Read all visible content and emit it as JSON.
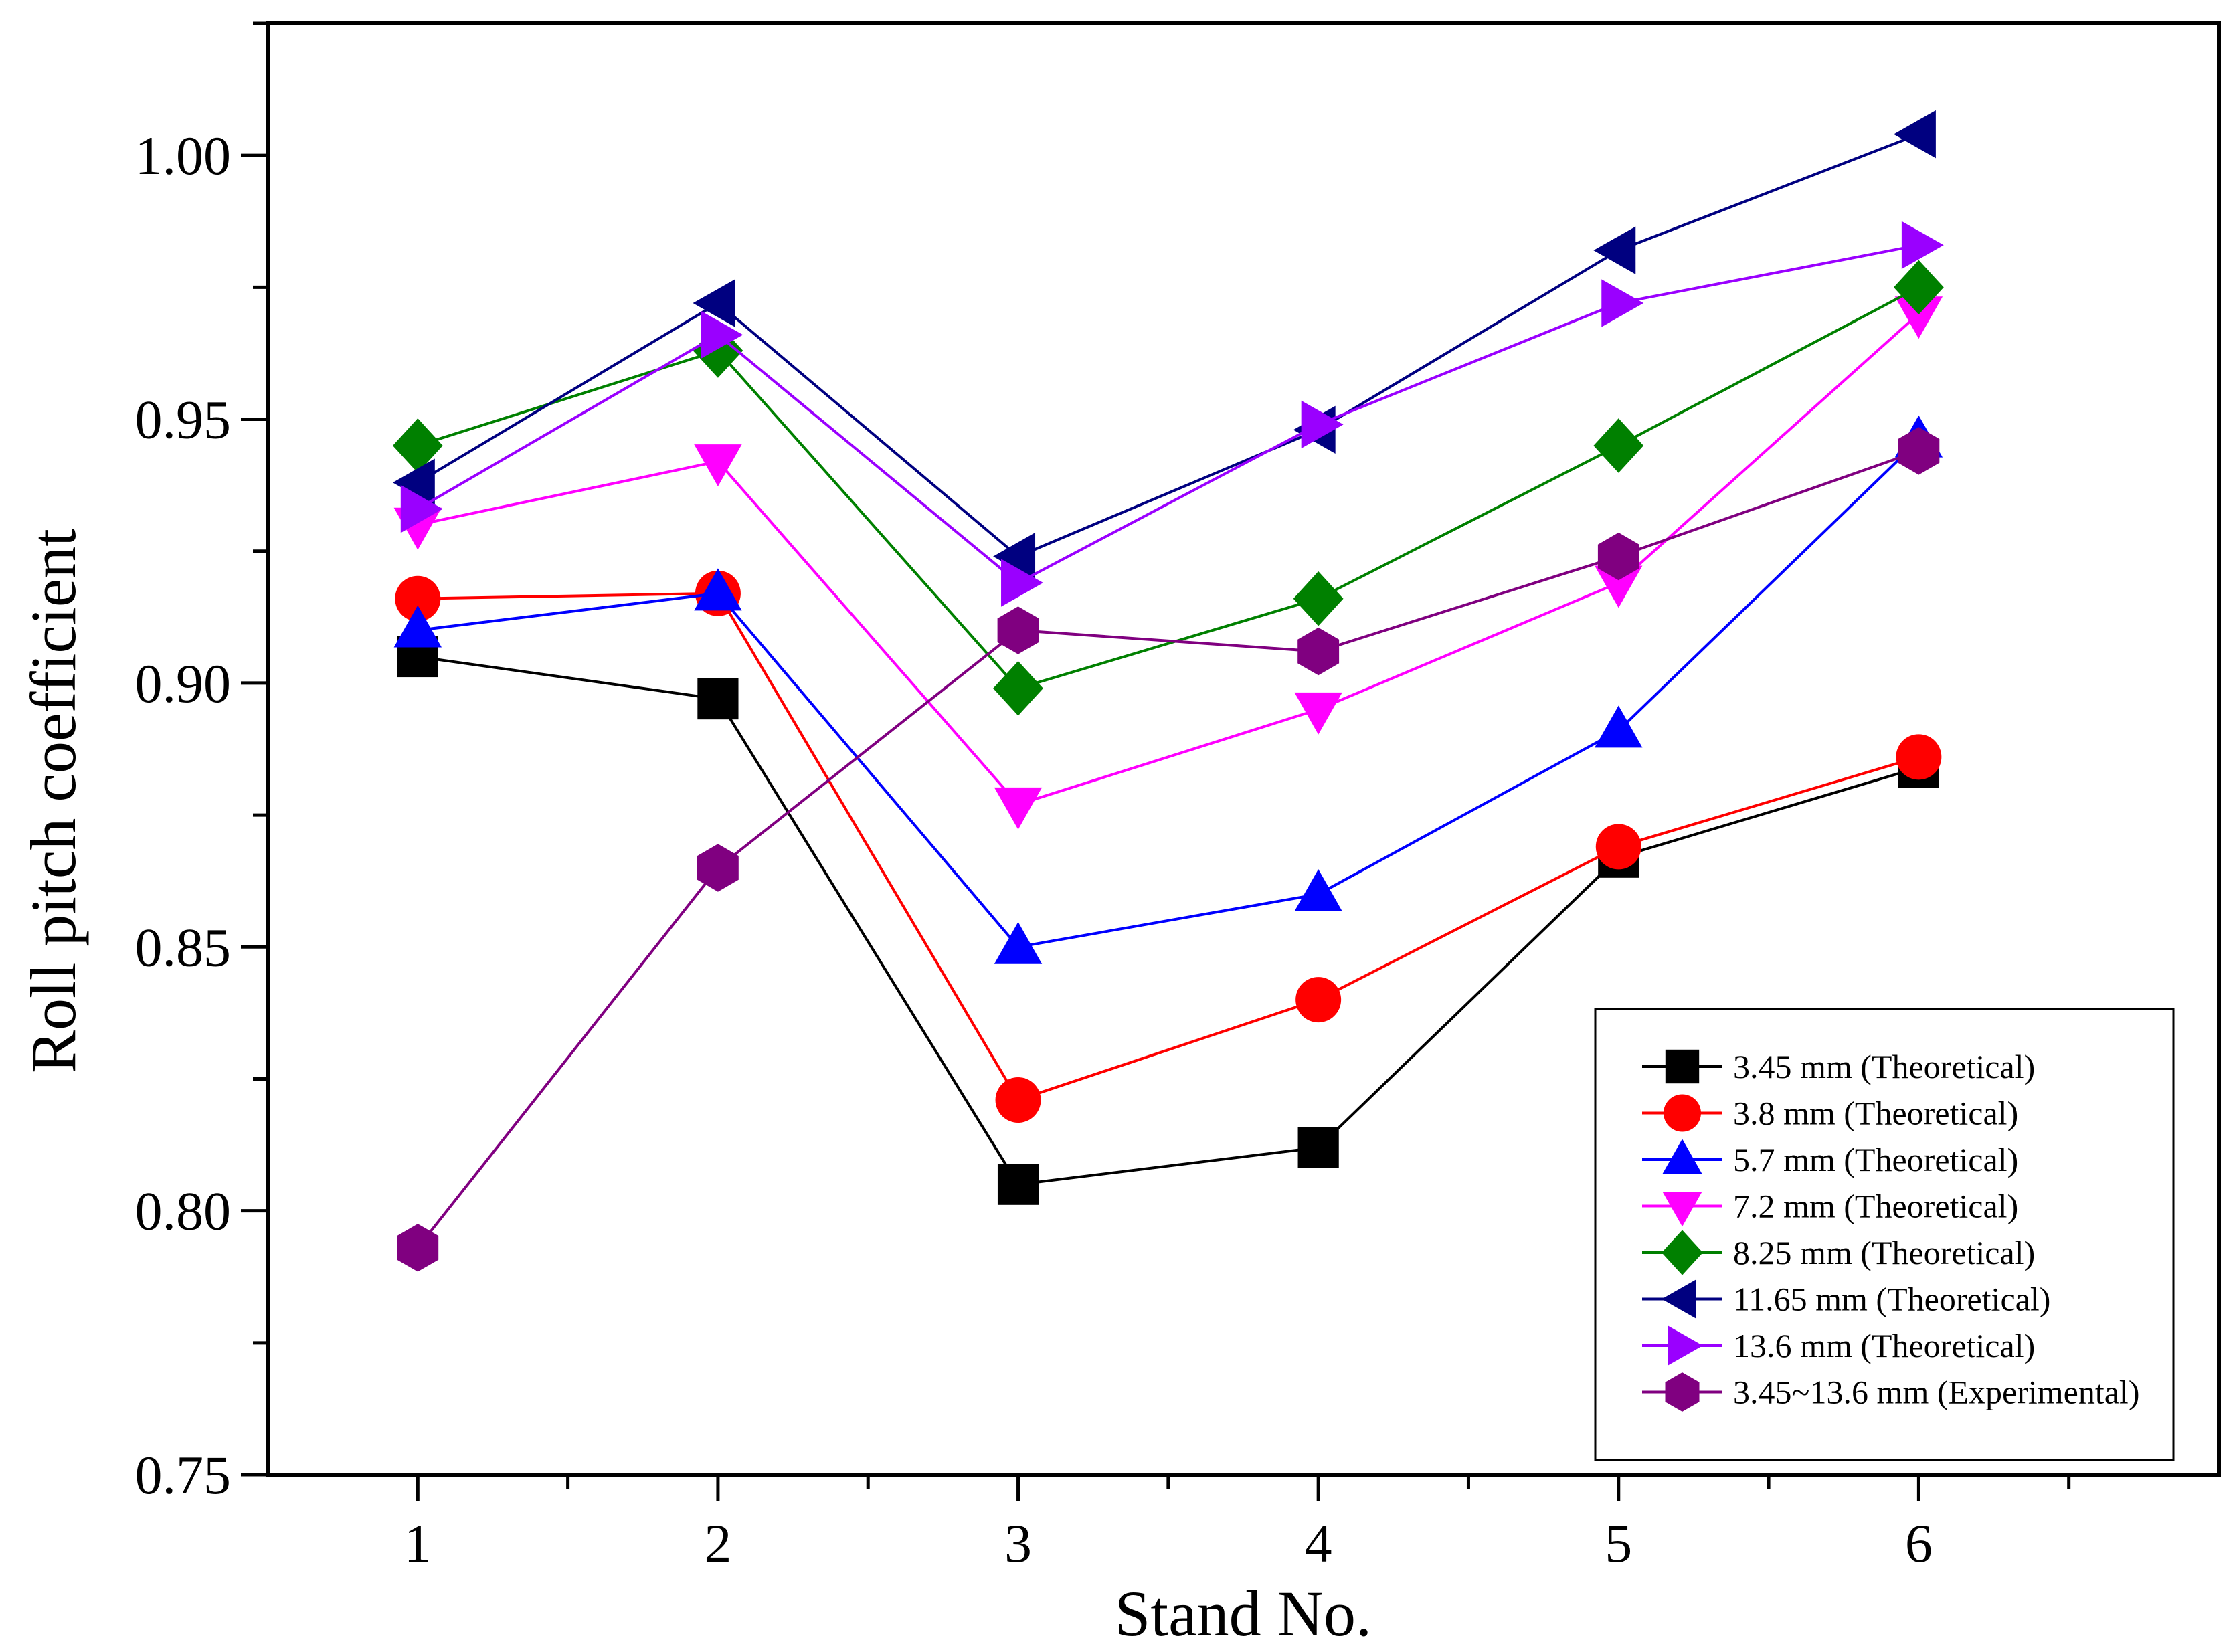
{
  "chart_data": {
    "type": "line",
    "title": "",
    "xlabel": "Stand No.",
    "ylabel": "Roll pitch coefficient",
    "x": [
      1,
      2,
      3,
      4,
      5,
      6
    ],
    "x_tick_labels": [
      "1",
      "2",
      "3",
      "4",
      "5",
      "6"
    ],
    "xlim": [
      0.5,
      7.0
    ],
    "ylim": [
      0.75,
      1.025
    ],
    "y_ticks": [
      0.75,
      0.8,
      0.85,
      0.9,
      0.95,
      1.0
    ],
    "y_tick_labels": [
      "0.75",
      "0.80",
      "0.85",
      "0.90",
      "0.95",
      "1.00"
    ],
    "grid": false,
    "legend_position": "bottom-right",
    "series": [
      {
        "name": "3.45 mm (Theoretical)",
        "color": "#000000",
        "marker": "square",
        "values": [
          0.905,
          0.897,
          0.805,
          0.812,
          0.867,
          0.884
        ]
      },
      {
        "name": "3.8 mm (Theoretical)",
        "color": "#ff0000",
        "marker": "circle",
        "values": [
          0.916,
          0.917,
          0.821,
          0.84,
          0.869,
          0.886
        ]
      },
      {
        "name": "5.7 mm (Theoretical)",
        "color": "#0000ff",
        "marker": "triangle-up",
        "values": [
          0.91,
          0.917,
          0.85,
          0.86,
          0.891,
          0.946
        ]
      },
      {
        "name": "7.2 mm (Theoretical)",
        "color": "#ff00ff",
        "marker": "triangle-down",
        "values": [
          0.93,
          0.942,
          0.877,
          0.895,
          0.919,
          0.97
        ]
      },
      {
        "name": "8.25 mm (Theoretical)",
        "color": "#008000",
        "marker": "diamond",
        "values": [
          0.945,
          0.963,
          0.899,
          0.916,
          0.945,
          0.975
        ]
      },
      {
        "name": "11.65 mm (Theoretical)",
        "color": "#000080",
        "marker": "triangle-left",
        "values": [
          0.938,
          0.972,
          0.924,
          0.948,
          0.982,
          1.004
        ]
      },
      {
        "name": "13.6 mm (Theoretical)",
        "color": "#9a00ff",
        "marker": "triangle-right",
        "values": [
          0.933,
          0.966,
          0.919,
          0.949,
          0.972,
          0.983
        ]
      },
      {
        "name": "3.45~13.6 mm (Experimental)",
        "color": "#800080",
        "marker": "hexagon",
        "values": [
          0.793,
          0.865,
          0.91,
          0.906,
          0.924,
          0.944
        ]
      }
    ]
  }
}
